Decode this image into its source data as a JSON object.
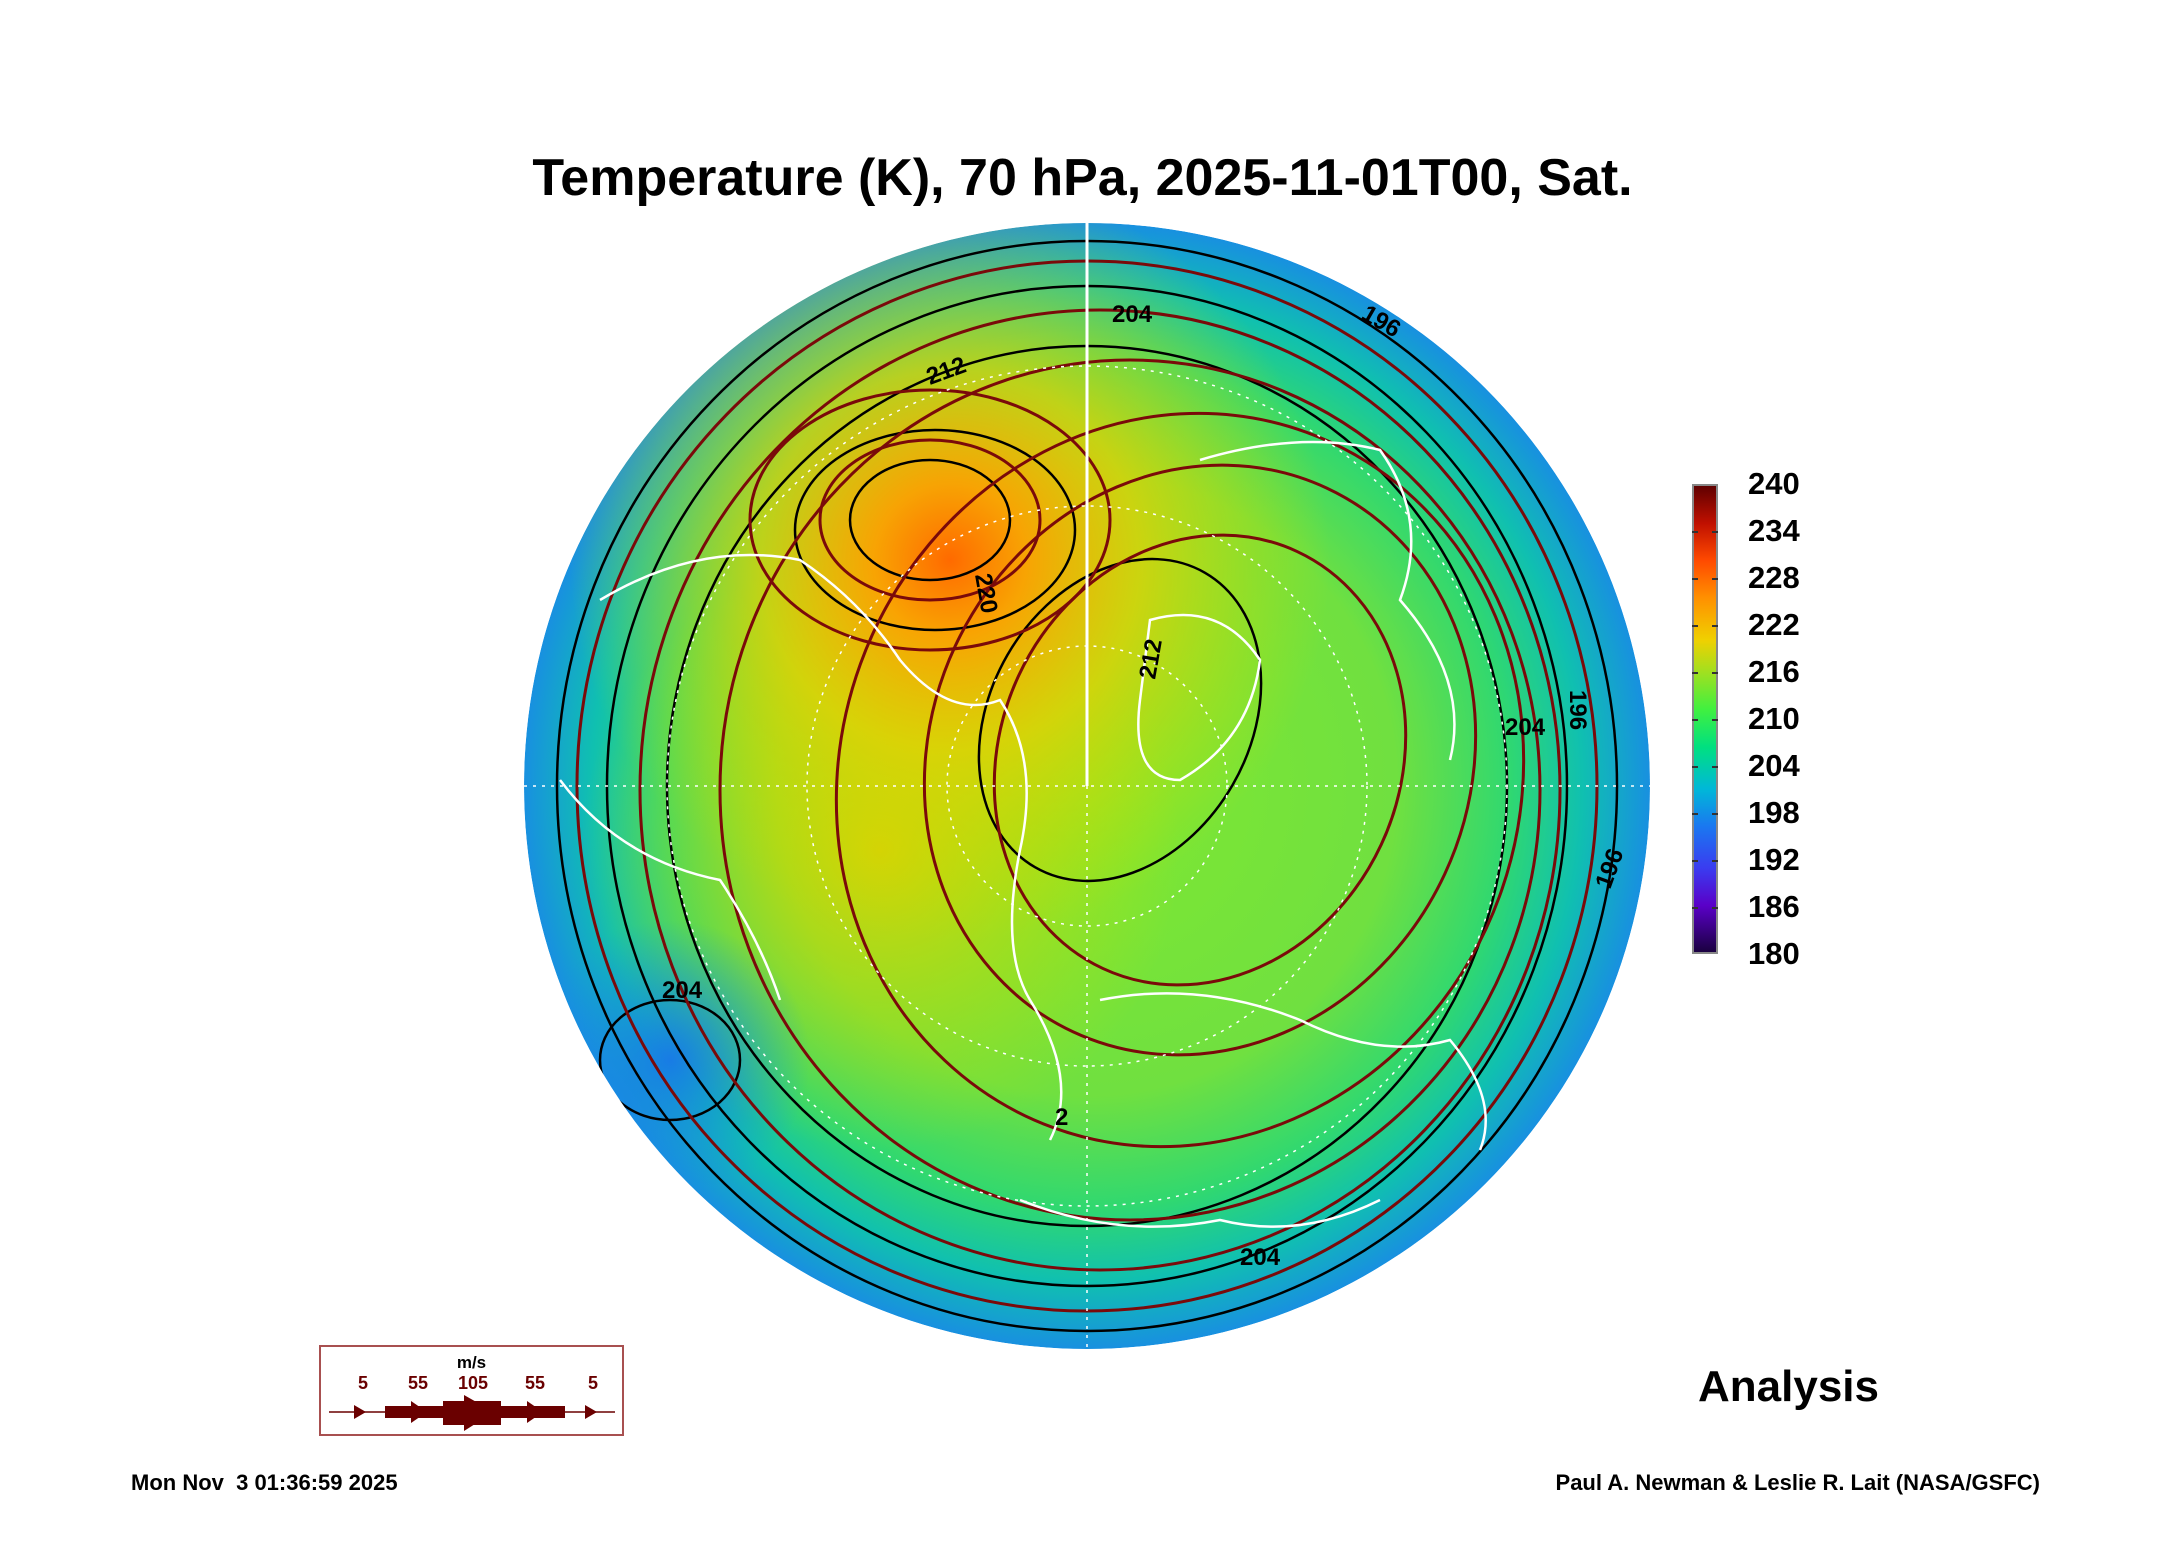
{
  "title": "Temperature (K), 70 hPa, 2025-11-01T00, Sat.",
  "colorbar": {
    "min": 180,
    "max": 240,
    "ticks": [
      "240",
      "234",
      "228",
      "222",
      "216",
      "210",
      "204",
      "198",
      "192",
      "186",
      "180"
    ],
    "colors": [
      "#1a0040",
      "#5a00c8",
      "#1a78f0",
      "#00b8d8",
      "#00e080",
      "#a0e020",
      "#f0d000",
      "#ff9000",
      "#ff4a00",
      "#600000"
    ]
  },
  "contour_labels": [
    "204",
    "212",
    "196",
    "220",
    "212",
    "204",
    "196",
    "196",
    "204",
    "204",
    "2"
  ],
  "legend": {
    "unit": "m/s",
    "values": [
      "5",
      "55",
      "105",
      "55",
      "5"
    ],
    "color": "#6a0000"
  },
  "analysis_label": "Analysis",
  "footer": {
    "date": "Mon Nov  3 01:36:59 2025",
    "credit": "Paul A. Newman & Leslie R. Lait (NASA/GSFC)"
  }
}
